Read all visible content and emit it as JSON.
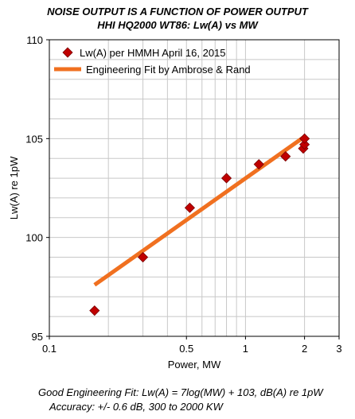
{
  "chart_data": {
    "type": "scatter",
    "title": "NOISE OUTPUT IS A FUNCTION OF POWER OUTPUT",
    "subtitle": "HHI HQ2000 WT86: Lw(A) vs MW",
    "xlabel": "Power, MW",
    "ylabel": "Lw(A) re 1pW",
    "xscale": "log",
    "xlim": [
      0.1,
      3
    ],
    "ylim": [
      95,
      110
    ],
    "xticks": [
      {
        "value": 0.1,
        "label": "0.1"
      },
      {
        "value": 0.5,
        "label": "0.5"
      },
      {
        "value": 1,
        "label": "1"
      },
      {
        "value": 2,
        "label": "2"
      },
      {
        "value": 3,
        "label": "3"
      }
    ],
    "yticks": [
      {
        "value": 95,
        "label": "95"
      },
      {
        "value": 100,
        "label": "100"
      },
      {
        "value": 105,
        "label": "105"
      },
      {
        "value": 110,
        "label": "110"
      }
    ],
    "grid": true,
    "legend_position": "top-left",
    "series": [
      {
        "name": "Lw(A) per HMMH April 16, 2015",
        "type": "scatter",
        "marker": "diamond",
        "color": "#c00000",
        "points": [
          {
            "x": 0.17,
            "y": 96.3
          },
          {
            "x": 0.3,
            "y": 99.0
          },
          {
            "x": 0.52,
            "y": 101.5
          },
          {
            "x": 0.8,
            "y": 103.0
          },
          {
            "x": 1.17,
            "y": 103.7
          },
          {
            "x": 1.6,
            "y": 104.1
          },
          {
            "x": 1.97,
            "y": 104.5
          },
          {
            "x": 2.0,
            "y": 104.7
          },
          {
            "x": 2.0,
            "y": 105.0
          }
        ]
      },
      {
        "name": "Engineering Fit by Ambrose & Rand",
        "type": "line",
        "color": "#f07020",
        "points": [
          {
            "x": 0.17,
            "y": 97.6
          },
          {
            "x": 2.0,
            "y": 105.1
          }
        ]
      }
    ]
  },
  "notes": {
    "line1": "Good Engineering Fit: Lw(A) = 7log(MW) + 103, dB(A) re 1pW",
    "line2": "Accuracy: +/- 0.6 dB, 300 to 2000 KW"
  }
}
